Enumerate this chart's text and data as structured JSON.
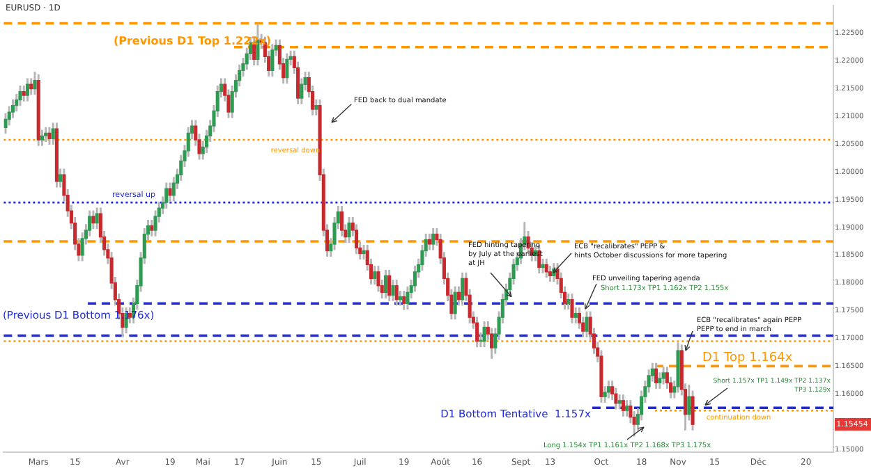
{
  "chart_data": {
    "type": "candlestick",
    "title": "EURUSD · 1D",
    "categories": [
      null,
      null,
      null,
      null,
      null,
      null,
      null,
      null,
      null,
      "Mars",
      null,
      null,
      null,
      null,
      null,
      null,
      null,
      null,
      null,
      "15",
      null,
      null,
      null,
      null,
      null,
      null,
      null,
      null,
      null,
      null,
      null,
      null,
      "Avr",
      null,
      null,
      null,
      null,
      null,
      null,
      null,
      null,
      null,
      null,
      null,
      null,
      "19",
      null,
      null,
      null,
      null,
      null,
      null,
      null,
      null,
      "Mai",
      null,
      null,
      null,
      null,
      null,
      null,
      null,
      null,
      null,
      "17",
      null,
      null,
      null,
      null,
      null,
      null,
      null,
      null,
      null,
      null,
      "Juin",
      null,
      null,
      null,
      null,
      null,
      null,
      null,
      null,
      null,
      "15",
      null,
      null,
      null,
      null,
      null,
      null,
      null,
      null,
      null,
      null,
      null,
      "Juil",
      null,
      null,
      null,
      null,
      null,
      null,
      null,
      null,
      null,
      null,
      null,
      "19",
      null,
      null,
      null,
      null,
      null,
      null,
      null,
      null,
      null,
      "Août",
      null,
      null,
      null,
      null,
      null,
      null,
      null,
      null,
      null,
      "16",
      null,
      null,
      null,
      null,
      null,
      null,
      null,
      null,
      null,
      null,
      null,
      "Sept",
      null,
      null,
      null,
      null,
      null,
      null,
      null,
      "13",
      null,
      null,
      null,
      null,
      null,
      null,
      null,
      null,
      null,
      null,
      null,
      null,
      null,
      "Oct",
      null,
      null,
      null,
      null,
      null,
      null,
      null,
      null,
      null,
      null,
      "18",
      null,
      null,
      null,
      null,
      null,
      null,
      null,
      null,
      null,
      "Nov",
      null,
      null,
      null,
      null,
      null,
      null,
      null,
      null,
      null,
      "15",
      null,
      null,
      null,
      null,
      null,
      null,
      null,
      null,
      null,
      null,
      null,
      "Déc",
      null,
      null,
      null,
      null,
      null,
      null,
      null,
      null,
      null,
      null,
      null,
      null,
      "20",
      null,
      null,
      null,
      null,
      null,
      null,
      null
    ],
    "ohlc": [
      [
        1.208,
        1.2105,
        1.207,
        1.2095
      ],
      [
        1.2095,
        1.2118,
        1.2085,
        1.2108
      ],
      [
        1.2108,
        1.213,
        1.2098,
        1.212
      ],
      [
        1.212,
        1.214,
        1.211,
        1.213
      ],
      [
        1.213,
        1.2155,
        1.212,
        1.2145
      ],
      [
        1.2145,
        1.2155,
        1.2128,
        1.2138
      ],
      [
        1.2138,
        1.2168,
        1.2128,
        1.2158
      ],
      [
        1.2158,
        1.2168,
        1.214,
        1.215
      ],
      [
        1.215,
        1.218,
        1.214,
        1.2165
      ],
      [
        1.2165,
        1.2175,
        1.2048,
        1.2058
      ],
      [
        1.2058,
        1.2075,
        1.2048,
        1.2065
      ],
      [
        1.2065,
        1.208,
        1.2055,
        1.207
      ],
      [
        1.207,
        1.208,
        1.205,
        1.206
      ],
      [
        1.206,
        1.2088,
        1.205,
        1.2078
      ],
      [
        1.2078,
        1.2088,
        1.1973,
        1.1983
      ],
      [
        1.1983,
        1.2005,
        1.1973,
        1.1995
      ],
      [
        1.1995,
        1.2005,
        1.1948,
        1.1958
      ],
      [
        1.1958,
        1.1968,
        1.192,
        1.193
      ],
      [
        1.193,
        1.194,
        1.1898,
        1.1908
      ],
      [
        1.1908,
        1.1918,
        1.186,
        1.187
      ],
      [
        1.187,
        1.188,
        1.184,
        1.185
      ],
      [
        1.185,
        1.189,
        1.184,
        1.188
      ],
      [
        1.188,
        1.1905,
        1.187,
        1.1895
      ],
      [
        1.1895,
        1.193,
        1.1885,
        1.192
      ],
      [
        1.192,
        1.193,
        1.1898,
        1.1908
      ],
      [
        1.1908,
        1.1935,
        1.1898,
        1.1925
      ],
      [
        1.1925,
        1.1935,
        1.1873,
        1.1883
      ],
      [
        1.1883,
        1.1893,
        1.185,
        1.186
      ],
      [
        1.186,
        1.187,
        1.1835,
        1.1845
      ],
      [
        1.1845,
        1.1855,
        1.179,
        1.18
      ],
      [
        1.18,
        1.181,
        1.176,
        1.177
      ],
      [
        1.177,
        1.178,
        1.1735,
        1.1745
      ],
      [
        1.1745,
        1.1755,
        1.1704,
        1.172
      ],
      [
        1.172,
        1.1755,
        1.171,
        1.1745
      ],
      [
        1.1745,
        1.1755,
        1.1728,
        1.1738
      ],
      [
        1.1738,
        1.1773,
        1.1728,
        1.1763
      ],
      [
        1.1763,
        1.1805,
        1.1753,
        1.1795
      ],
      [
        1.1795,
        1.1855,
        1.1785,
        1.1845
      ],
      [
        1.1845,
        1.1898,
        1.1835,
        1.1888
      ],
      [
        1.1888,
        1.1913,
        1.1878,
        1.1903
      ],
      [
        1.1903,
        1.1913,
        1.1885,
        1.1895
      ],
      [
        1.1895,
        1.193,
        1.1885,
        1.192
      ],
      [
        1.192,
        1.1945,
        1.191,
        1.1935
      ],
      [
        1.1935,
        1.1955,
        1.1925,
        1.1945
      ],
      [
        1.1945,
        1.198,
        1.1935,
        1.197
      ],
      [
        1.197,
        1.198,
        1.1948,
        1.1958
      ],
      [
        1.1958,
        1.199,
        1.1948,
        1.198
      ],
      [
        1.198,
        1.2005,
        1.197,
        1.1995
      ],
      [
        1.1995,
        1.203,
        1.1985,
        1.202
      ],
      [
        1.202,
        1.2048,
        1.201,
        1.2038
      ],
      [
        1.2038,
        1.208,
        1.2028,
        1.207
      ],
      [
        1.207,
        1.2093,
        1.206,
        1.2083
      ],
      [
        1.2083,
        1.2093,
        1.2048,
        1.2058
      ],
      [
        1.2058,
        1.2068,
        1.2023,
        1.2033
      ],
      [
        1.2033,
        1.2055,
        1.2023,
        1.2045
      ],
      [
        1.2045,
        1.2075,
        1.2035,
        1.2065
      ],
      [
        1.2065,
        1.2093,
        1.2055,
        1.2083
      ],
      [
        1.2083,
        1.212,
        1.2073,
        1.211
      ],
      [
        1.211,
        1.2155,
        1.21,
        1.2145
      ],
      [
        1.2145,
        1.2168,
        1.2135,
        1.2158
      ],
      [
        1.2158,
        1.2168,
        1.2128,
        1.2138
      ],
      [
        1.2138,
        1.2148,
        1.2098,
        1.2108
      ],
      [
        1.2108,
        1.2155,
        1.2098,
        1.2145
      ],
      [
        1.2145,
        1.2175,
        1.2135,
        1.2165
      ],
      [
        1.2165,
        1.2193,
        1.2155,
        1.2183
      ],
      [
        1.2183,
        1.2205,
        1.2173,
        1.2195
      ],
      [
        1.2195,
        1.2223,
        1.2185,
        1.2213
      ],
      [
        1.2213,
        1.2243,
        1.2203,
        1.2233
      ],
      [
        1.2233,
        1.2243,
        1.2193,
        1.2203
      ],
      [
        1.2203,
        1.2266,
        1.2193,
        1.2238
      ],
      [
        1.2238,
        1.2248,
        1.2223,
        1.2233
      ],
      [
        1.2233,
        1.2243,
        1.2198,
        1.2208
      ],
      [
        1.2208,
        1.2218,
        1.2173,
        1.2183
      ],
      [
        1.2183,
        1.223,
        1.2173,
        1.222
      ],
      [
        1.222,
        1.2238,
        1.221,
        1.2228
      ],
      [
        1.2228,
        1.2238,
        1.2185,
        1.2195
      ],
      [
        1.2195,
        1.2205,
        1.216,
        1.217
      ],
      [
        1.217,
        1.2213,
        1.216,
        1.2203
      ],
      [
        1.2203,
        1.2218,
        1.2193,
        1.2208
      ],
      [
        1.2208,
        1.2218,
        1.2178,
        1.2188
      ],
      [
        1.2188,
        1.2198,
        1.2123,
        1.2133
      ],
      [
        1.2133,
        1.2168,
        1.2123,
        1.2158
      ],
      [
        1.2158,
        1.218,
        1.2148,
        1.217
      ],
      [
        1.217,
        1.218,
        1.2135,
        1.2145
      ],
      [
        1.2145,
        1.2155,
        1.2103,
        1.2113
      ],
      [
        1.2113,
        1.213,
        1.2103,
        1.212
      ],
      [
        1.212,
        1.213,
        1.1985,
        1.1995
      ],
      [
        1.1995,
        1.2005,
        1.1885,
        1.1895
      ],
      [
        1.1895,
        1.1905,
        1.1848,
        1.1858
      ],
      [
        1.1858,
        1.188,
        1.1848,
        1.187
      ],
      [
        1.187,
        1.1918,
        1.186,
        1.1908
      ],
      [
        1.1908,
        1.1938,
        1.1898,
        1.1928
      ],
      [
        1.1928,
        1.1938,
        1.1885,
        1.1895
      ],
      [
        1.1895,
        1.1905,
        1.1873,
        1.1883
      ],
      [
        1.1883,
        1.1918,
        1.1873,
        1.1908
      ],
      [
        1.1908,
        1.1918,
        1.1885,
        1.1895
      ],
      [
        1.1895,
        1.1905,
        1.1853,
        1.1863
      ],
      [
        1.1863,
        1.1873,
        1.1843,
        1.1853
      ],
      [
        1.1853,
        1.1868,
        1.1843,
        1.1858
      ],
      [
        1.1858,
        1.1868,
        1.1823,
        1.1833
      ],
      [
        1.1833,
        1.1843,
        1.1798,
        1.1808
      ],
      [
        1.1808,
        1.183,
        1.1798,
        1.182
      ],
      [
        1.182,
        1.183,
        1.1785,
        1.1795
      ],
      [
        1.1795,
        1.1805,
        1.1773,
        1.1783
      ],
      [
        1.1783,
        1.1823,
        1.1773,
        1.1813
      ],
      [
        1.1813,
        1.1823,
        1.1768,
        1.1778
      ],
      [
        1.1778,
        1.1805,
        1.1768,
        1.1795
      ],
      [
        1.1795,
        1.1805,
        1.176,
        1.177
      ],
      [
        1.177,
        1.1785,
        1.176,
        1.1775
      ],
      [
        1.1775,
        1.1785,
        1.1752,
        1.1763
      ],
      [
        1.1763,
        1.1793,
        1.1753,
        1.1783
      ],
      [
        1.1783,
        1.1805,
        1.1773,
        1.1795
      ],
      [
        1.1795,
        1.183,
        1.1785,
        1.182
      ],
      [
        1.182,
        1.1843,
        1.181,
        1.1833
      ],
      [
        1.1833,
        1.1868,
        1.1823,
        1.1858
      ],
      [
        1.1858,
        1.1888,
        1.1848,
        1.1878
      ],
      [
        1.1878,
        1.1888,
        1.186,
        1.187
      ],
      [
        1.187,
        1.1898,
        1.186,
        1.1888
      ],
      [
        1.1888,
        1.1898,
        1.1868,
        1.1878
      ],
      [
        1.1878,
        1.1888,
        1.1835,
        1.1845
      ],
      [
        1.1845,
        1.1855,
        1.1798,
        1.1808
      ],
      [
        1.1808,
        1.1818,
        1.1768,
        1.1778
      ],
      [
        1.1778,
        1.1788,
        1.1735,
        1.1745
      ],
      [
        1.1745,
        1.1793,
        1.1735,
        1.1783
      ],
      [
        1.1783,
        1.1793,
        1.176,
        1.177
      ],
      [
        1.177,
        1.1818,
        1.176,
        1.1808
      ],
      [
        1.1808,
        1.1818,
        1.1768,
        1.1778
      ],
      [
        1.1778,
        1.1788,
        1.1728,
        1.1738
      ],
      [
        1.1738,
        1.1748,
        1.1718,
        1.1728
      ],
      [
        1.1728,
        1.1738,
        1.1685,
        1.1695
      ],
      [
        1.1695,
        1.171,
        1.1685,
        1.1695
      ],
      [
        1.1695,
        1.173,
        1.1685,
        1.172
      ],
      [
        1.172,
        1.173,
        1.1698,
        1.1708
      ],
      [
        1.1708,
        1.1718,
        1.1664,
        1.1683
      ],
      [
        1.1683,
        1.1718,
        1.1673,
        1.1708
      ],
      [
        1.1708,
        1.1748,
        1.1698,
        1.1738
      ],
      [
        1.1738,
        1.178,
        1.1728,
        1.177
      ],
      [
        1.177,
        1.1798,
        1.176,
        1.1788
      ],
      [
        1.1788,
        1.1818,
        1.1778,
        1.1808
      ],
      [
        1.1808,
        1.1843,
        1.1798,
        1.1833
      ],
      [
        1.1833,
        1.1855,
        1.1823,
        1.1845
      ],
      [
        1.1845,
        1.188,
        1.1835,
        1.187
      ],
      [
        1.187,
        1.1909,
        1.186,
        1.1883
      ],
      [
        1.1883,
        1.1893,
        1.1853,
        1.1863
      ],
      [
        1.1863,
        1.1873,
        1.184,
        1.185
      ],
      [
        1.185,
        1.1868,
        1.184,
        1.1858
      ],
      [
        1.1858,
        1.1868,
        1.1818,
        1.1828
      ],
      [
        1.1828,
        1.1843,
        1.1818,
        1.1833
      ],
      [
        1.1833,
        1.1843,
        1.181,
        1.182
      ],
      [
        1.182,
        1.183,
        1.1803,
        1.1813
      ],
      [
        1.1813,
        1.1835,
        1.1803,
        1.1825
      ],
      [
        1.1825,
        1.1835,
        1.1798,
        1.1808
      ],
      [
        1.1808,
        1.1818,
        1.1773,
        1.1783
      ],
      [
        1.1783,
        1.1793,
        1.1753,
        1.1763
      ],
      [
        1.1763,
        1.178,
        1.1753,
        1.177
      ],
      [
        1.177,
        1.178,
        1.1728,
        1.1738
      ],
      [
        1.1738,
        1.1755,
        1.1728,
        1.1745
      ],
      [
        1.1745,
        1.1755,
        1.1718,
        1.1728
      ],
      [
        1.1728,
        1.1738,
        1.1703,
        1.1713
      ],
      [
        1.1713,
        1.1748,
        1.1703,
        1.1738
      ],
      [
        1.1738,
        1.1748,
        1.1698,
        1.1708
      ],
      [
        1.1708,
        1.1718,
        1.1673,
        1.1683
      ],
      [
        1.1683,
        1.1693,
        1.1658,
        1.1668
      ],
      [
        1.1668,
        1.1678,
        1.1585,
        1.1595
      ],
      [
        1.1595,
        1.1613,
        1.1585,
        1.1603
      ],
      [
        1.1603,
        1.1623,
        1.1593,
        1.1613
      ],
      [
        1.1613,
        1.1623,
        1.159,
        1.16
      ],
      [
        1.16,
        1.161,
        1.1573,
        1.1583
      ],
      [
        1.1583,
        1.1598,
        1.1573,
        1.1588
      ],
      [
        1.1588,
        1.1598,
        1.156,
        1.157
      ],
      [
        1.157,
        1.1588,
        1.156,
        1.1578
      ],
      [
        1.1578,
        1.1588,
        1.1548,
        1.1558
      ],
      [
        1.1558,
        1.1568,
        1.1524,
        1.1545
      ],
      [
        1.1545,
        1.1573,
        1.1535,
        1.1563
      ],
      [
        1.1563,
        1.1605,
        1.1553,
        1.1595
      ],
      [
        1.1595,
        1.1623,
        1.1585,
        1.1613
      ],
      [
        1.1613,
        1.1643,
        1.1603,
        1.1633
      ],
      [
        1.1633,
        1.1655,
        1.1623,
        1.1645
      ],
      [
        1.1645,
        1.1655,
        1.161,
        1.162
      ],
      [
        1.162,
        1.1638,
        1.161,
        1.1628
      ],
      [
        1.1628,
        1.1648,
        1.1618,
        1.1638
      ],
      [
        1.1638,
        1.1648,
        1.161,
        1.162
      ],
      [
        1.162,
        1.163,
        1.1593,
        1.1603
      ],
      [
        1.1603,
        1.1623,
        1.1593,
        1.1613
      ],
      [
        1.1613,
        1.1692,
        1.1603,
        1.1678
      ],
      [
        1.1678,
        1.1688,
        1.1598,
        1.1608
      ],
      [
        1.1608,
        1.1618,
        1.1535,
        1.1563
      ],
      [
        1.1563,
        1.1616,
        1.1553,
        1.1595
      ],
      [
        1.1595,
        1.1605,
        1.1535,
        1.1545
      ],
      null,
      null,
      null,
      null,
      null,
      null,
      null,
      null,
      null,
      null,
      null,
      null,
      null,
      null,
      null,
      null,
      null,
      null,
      null,
      null,
      null,
      null,
      null,
      null,
      null,
      null,
      null,
      null,
      null,
      null,
      null,
      null,
      null,
      null,
      null,
      null,
      null,
      null
    ],
    "ylim": [
      1.1495,
      1.23
    ],
    "yticks": [
      {
        "value": 1.15,
        "label": "1.15000"
      },
      {
        "value": 1.16,
        "label": "1.16000"
      },
      {
        "value": 1.165,
        "label": "1.16500"
      },
      {
        "value": 1.17,
        "label": "1.17000"
      },
      {
        "value": 1.175,
        "label": "1.17500"
      },
      {
        "value": 1.18,
        "label": "1.18000"
      },
      {
        "value": 1.185,
        "label": "1.18500"
      },
      {
        "value": 1.19,
        "label": "1.19000"
      },
      {
        "value": 1.195,
        "label": "1.19500"
      },
      {
        "value": 1.2,
        "label": "1.20000"
      },
      {
        "value": 1.205,
        "label": "1.20500"
      },
      {
        "value": 1.21,
        "label": "1.21000"
      },
      {
        "value": 1.215,
        "label": "1.21500"
      },
      {
        "value": 1.22,
        "label": "1.22000"
      },
      {
        "value": 1.225,
        "label": "1.22500"
      }
    ],
    "ref_lines": [
      {
        "axis": "y",
        "value": 1.2268,
        "color": "#ff9800",
        "line_style": "dashed"
      },
      {
        "axis": "y",
        "value": 1.2225,
        "label": "(Previous D1 Top 1.222x)",
        "color": "#ff9800",
        "line_style": "dashed"
      },
      {
        "axis": "y",
        "value": 1.2058,
        "label": "reversal down",
        "color": "#ff9800",
        "line_style": "dotted"
      },
      {
        "axis": "y",
        "value": 1.1945,
        "label": "reversal up",
        "color": "#1e2adb",
        "line_style": "dotted"
      },
      {
        "axis": "y",
        "value": 1.1875,
        "color": "#ff9800",
        "line_style": "dashed"
      },
      {
        "axis": "y",
        "value": 1.1763,
        "label": "(Previous D1 Bottom 1.176x)",
        "color": "#1e2adb",
        "line_style": "dashed"
      },
      {
        "axis": "y",
        "value": 1.1705,
        "color": "#1e2adb",
        "line_style": "dashed"
      },
      {
        "axis": "y",
        "value": 1.1695,
        "color": "#ff9800",
        "line_style": "dotted"
      },
      {
        "axis": "y",
        "value": 1.165,
        "label": "D1 Top 1.164x",
        "color": "#ff9800",
        "line_style": "dashed"
      },
      {
        "axis": "y",
        "value": 1.1575,
        "label": "D1 Bottom Tentative  1.157x",
        "color": "#1e2adb",
        "line_style": "dashed"
      },
      {
        "axis": "y",
        "value": 1.157,
        "label": "continuation down",
        "color": "#ff9800",
        "line_style": "dotted"
      }
    ],
    "annotations": [
      "FED back to dual mandate",
      {
        "text": "FED hinting tapering\nby July at the earliest\nat JH",
        "y": 1.1775
      },
      "ECB \"recalibrates\" PEPP &\nhints October discussions for more tapering",
      "FED unveiling tapering agenda",
      {
        "text": "Short 1.173x TP1 1.162x TP2 1.155x",
        "y": 1.1753
      },
      "ECB \"recalibrates\" again PEPP\nPEPP to end in march",
      {
        "text": "Short 1.157x TP1 1.149x TP2 1.137x\nTP3 1.129x",
        "y": 1.158
      },
      {
        "text": "Long 1.154x TP1 1.161x TP2 1.168x TP3 1.175x",
        "y": 1.154
      },
      "1.15454"
    ]
  }
}
